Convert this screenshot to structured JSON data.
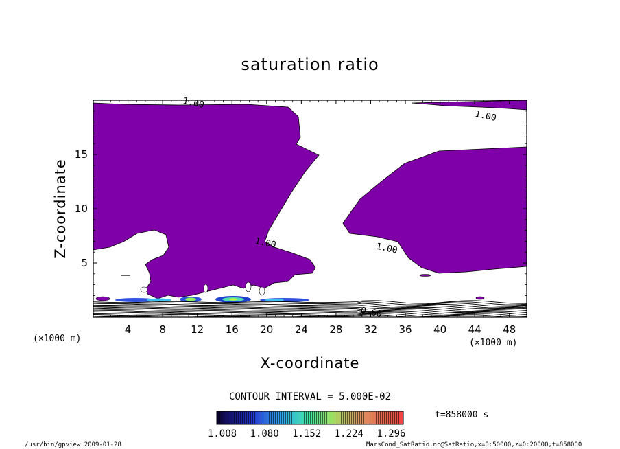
{
  "chart_data": {
    "type": "heatmap",
    "title": "saturation ratio",
    "xlabel": "X-coordinate",
    "ylabel": "Z-coordinate",
    "x_unit": "(×1000 m)",
    "y_unit": "(×1000 m)",
    "xlim": [
      0,
      50
    ],
    "ylim": [
      0,
      20
    ],
    "x_ticks": [
      4,
      8,
      12,
      16,
      20,
      24,
      28,
      32,
      36,
      40,
      44,
      48
    ],
    "y_ticks": [
      5,
      10,
      15
    ],
    "contour_interval": "CONTOUR INTERVAL = 5.000E-02",
    "time_label": "t=858000 s",
    "colorbar_ticks": [
      "1.008",
      "1.080",
      "1.152",
      "1.224",
      "1.296"
    ],
    "colorbar_range": [
      1.008,
      1.296
    ],
    "fill_color": "#7f00a8",
    "contour_labels": [
      {
        "text": "1.00",
        "x": 11.5,
        "y": 19.5
      },
      {
        "text": "1.00",
        "x": 45.2,
        "y": 18.3
      },
      {
        "text": "1.00",
        "x": 19.8,
        "y": 6.6
      },
      {
        "text": "1.00",
        "x": 33.8,
        "y": 6.1
      },
      {
        "text": "0.60",
        "x": 32.0,
        "y": 0.2
      }
    ],
    "footer_left": "/usr/bin/gpview   2009-01-28",
    "footer_right": "MarsCond_SatRatio.nc@SatRatio,x=0:50000,z=0:20000,t=858000"
  }
}
